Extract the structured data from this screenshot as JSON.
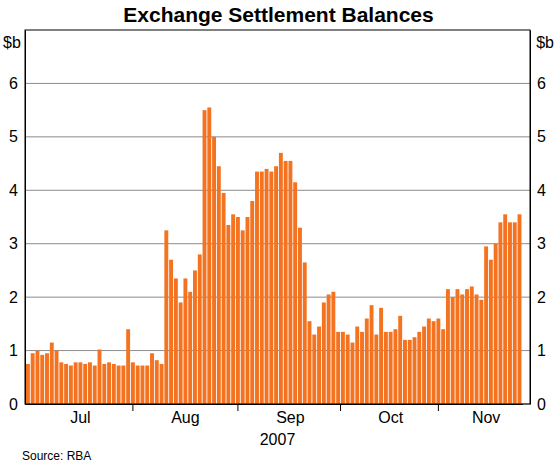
{
  "chart_data": {
    "type": "bar",
    "title": "Exchange Settlement Balances",
    "ylabel": "$b",
    "xlabel": "2007",
    "source": "Source: RBA",
    "categories": [
      null,
      null,
      null,
      null,
      null,
      null,
      null,
      null,
      null,
      null,
      null,
      "Jul",
      null,
      null,
      null,
      null,
      null,
      null,
      null,
      null,
      null,
      null,
      null,
      null,
      null,
      null,
      null,
      null,
      null,
      null,
      null,
      null,
      null,
      "Aug",
      null,
      null,
      null,
      null,
      null,
      null,
      null,
      null,
      null,
      null,
      null,
      null,
      null,
      null,
      null,
      null,
      null,
      null,
      null,
      null,
      null,
      "Sep",
      null,
      null,
      null,
      null,
      null,
      null,
      null,
      null,
      null,
      null,
      null,
      null,
      null,
      null,
      null,
      null,
      null,
      null,
      null,
      null,
      "Oct",
      null,
      null,
      null,
      null,
      null,
      null,
      null,
      null,
      null,
      null,
      null,
      null,
      null,
      null,
      null,
      null,
      null,
      null,
      null,
      "Nov",
      null,
      null,
      null,
      null,
      null,
      null,
      null
    ],
    "values": [
      0.75,
      0.95,
      1.0,
      0.92,
      0.95,
      1.15,
      1.0,
      0.78,
      0.75,
      0.72,
      0.78,
      0.78,
      0.75,
      0.78,
      0.72,
      1.02,
      0.75,
      0.78,
      0.75,
      0.72,
      0.72,
      1.4,
      0.78,
      0.72,
      0.72,
      0.72,
      0.95,
      0.82,
      0.75,
      3.25,
      2.7,
      2.35,
      1.9,
      2.35,
      2.1,
      2.5,
      2.8,
      5.5,
      5.55,
      5.0,
      4.45,
      3.95,
      3.35,
      3.55,
      3.5,
      3.25,
      3.5,
      3.8,
      4.35,
      4.35,
      4.4,
      4.35,
      4.45,
      4.7,
      4.55,
      4.55,
      4.15,
      3.3,
      2.65,
      1.55,
      1.3,
      1.45,
      1.9,
      2.05,
      2.1,
      1.35,
      1.35,
      1.3,
      1.15,
      1.45,
      1.35,
      1.6,
      1.85,
      1.3,
      1.8,
      1.35,
      1.35,
      1.4,
      1.65,
      1.2,
      1.2,
      1.25,
      1.35,
      1.45,
      1.6,
      1.55,
      1.6,
      1.4,
      2.15,
      2.0,
      2.15,
      2.05,
      2.15,
      2.2,
      2.05,
      1.95,
      2.95,
      2.7,
      3.0,
      3.4,
      3.55,
      3.4,
      3.4,
      3.55
    ],
    "color": "#f47321",
    "ylim": [
      0,
      7
    ],
    "yticks": [
      0,
      1,
      2,
      3,
      4,
      5,
      6
    ],
    "grid": true
  }
}
